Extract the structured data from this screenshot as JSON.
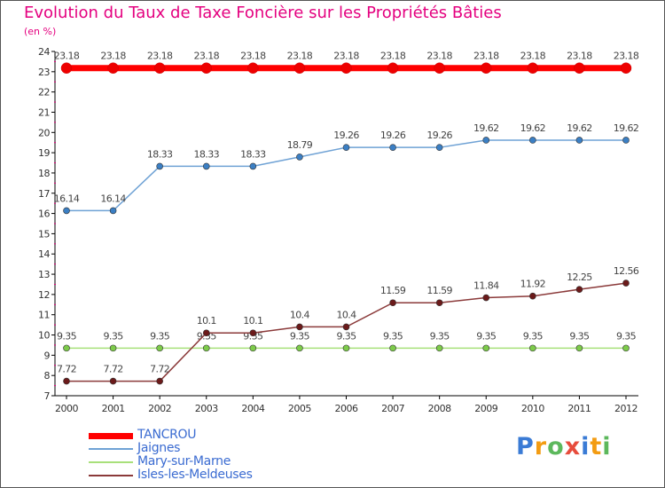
{
  "title": "Evolution du Taux de Taxe Foncière sur les Propriétés Bâties",
  "subtitle": "(en %)",
  "logo": {
    "text": "Proxiti",
    "letter_colors": [
      "#3a7bd5",
      "#f39c12",
      "#5cb85c",
      "#e74c3c",
      "#3a7bd5",
      "#f39c12",
      "#5cb85c"
    ]
  },
  "chart_data": {
    "type": "line",
    "title": "Evolution du Taux de Taxe Foncière sur les Propriétés Bâties",
    "ylabel": "(en %)",
    "xlabel": "",
    "ylim": [
      7,
      24
    ],
    "yticks": [
      7,
      8,
      9,
      10,
      11,
      12,
      13,
      14,
      15,
      16,
      17,
      18,
      19,
      20,
      21,
      22,
      23,
      24
    ],
    "x": [
      "2000",
      "2001",
      "2002",
      "2003",
      "2004",
      "2005",
      "2006",
      "2007",
      "2008",
      "2009",
      "2010",
      "2011",
      "2012"
    ],
    "legend_position": "bottom-left",
    "series": [
      {
        "name": "TANCROU",
        "color": "#ff0000",
        "marker": "#ee0000",
        "thick": true,
        "values": [
          23.18,
          23.18,
          23.18,
          23.18,
          23.18,
          23.18,
          23.18,
          23.18,
          23.18,
          23.18,
          23.18,
          23.18,
          23.18
        ],
        "labels": [
          "23.18",
          "23.18",
          "23.18",
          "23.18",
          "23.18",
          "23.18",
          "23.18",
          "23.18",
          "23.18",
          "23.18",
          "23.18",
          "23.18",
          "23.18"
        ]
      },
      {
        "name": "Jaignes",
        "color": "#6fa2d5",
        "marker": "#3b7fc4",
        "thick": false,
        "values": [
          16.14,
          16.14,
          18.33,
          18.33,
          18.33,
          18.79,
          19.26,
          19.26,
          19.26,
          19.62,
          19.62,
          19.62,
          19.62
        ],
        "labels": [
          "16.14",
          "16.14",
          "18.33",
          "18.33",
          "18.33",
          "18.79",
          "19.26",
          "19.26",
          "19.26",
          "19.62",
          "19.62",
          "19.62",
          "19.62"
        ]
      },
      {
        "name": "Mary-sur-Marne",
        "color": "#a8e07a",
        "marker": "#7dcb4a",
        "thick": false,
        "values": [
          9.35,
          9.35,
          9.35,
          9.35,
          9.35,
          9.35,
          9.35,
          9.35,
          9.35,
          9.35,
          9.35,
          9.35,
          9.35
        ],
        "labels": [
          "9.35",
          "9.35",
          "9.35",
          "9.35",
          "9.35",
          "9.35",
          "9.35",
          "9.35",
          "9.35",
          "9.35",
          "9.35",
          "9.35",
          "9.35"
        ]
      },
      {
        "name": "Isles-les-Meldeuses",
        "color": "#8b3a3a",
        "marker": "#6b1a1a",
        "thick": false,
        "values": [
          7.72,
          7.72,
          7.72,
          10.1,
          10.1,
          10.4,
          10.4,
          11.59,
          11.59,
          11.84,
          11.92,
          12.25,
          12.56
        ],
        "labels": [
          "7.72",
          "7.72",
          "7.72",
          "10.1",
          "10.1",
          "10.4",
          "10.4",
          "11.59",
          "11.59",
          "11.84",
          "11.92",
          "12.25",
          "12.56"
        ]
      }
    ]
  }
}
